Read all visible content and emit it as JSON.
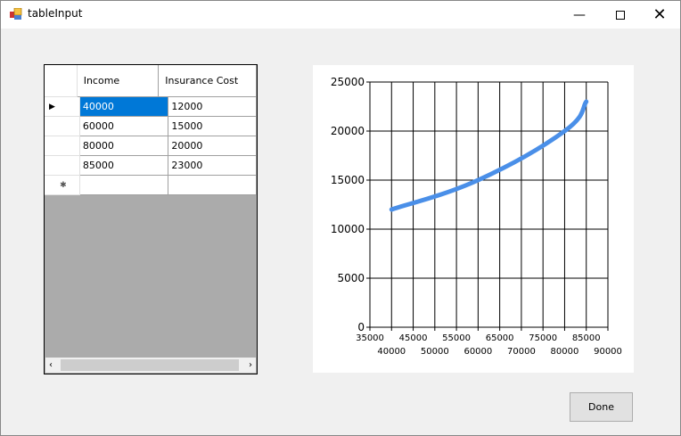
{
  "window": {
    "title": "tableInput",
    "minimize_icon": "minimize-icon",
    "maximize_icon": "maximize-icon",
    "close_icon": "close-icon"
  },
  "table": {
    "columns": [
      "Income",
      "Insurance Cost"
    ],
    "rows": [
      [
        "40000",
        "12000"
      ],
      [
        "60000",
        "15000"
      ],
      [
        "80000",
        "20000"
      ],
      [
        "85000",
        "23000"
      ]
    ],
    "selected_row": 0,
    "selection_color": "#0078d7"
  },
  "chart_data": {
    "type": "line",
    "smooth": true,
    "x": [
      40000,
      60000,
      80000,
      85000
    ],
    "values": [
      12000,
      15000,
      20000,
      23000
    ],
    "xlim": [
      35000,
      90000
    ],
    "ylim": [
      0,
      25000
    ],
    "xticks": [
      35000,
      40000,
      45000,
      50000,
      55000,
      60000,
      65000,
      70000,
      75000,
      80000,
      85000,
      90000
    ],
    "yticks": [
      0,
      5000,
      10000,
      15000,
      20000,
      25000
    ],
    "grid": true,
    "color": "#4a8fe8",
    "title": "",
    "xlabel": "",
    "ylabel": ""
  },
  "buttons": {
    "done": "Done"
  }
}
